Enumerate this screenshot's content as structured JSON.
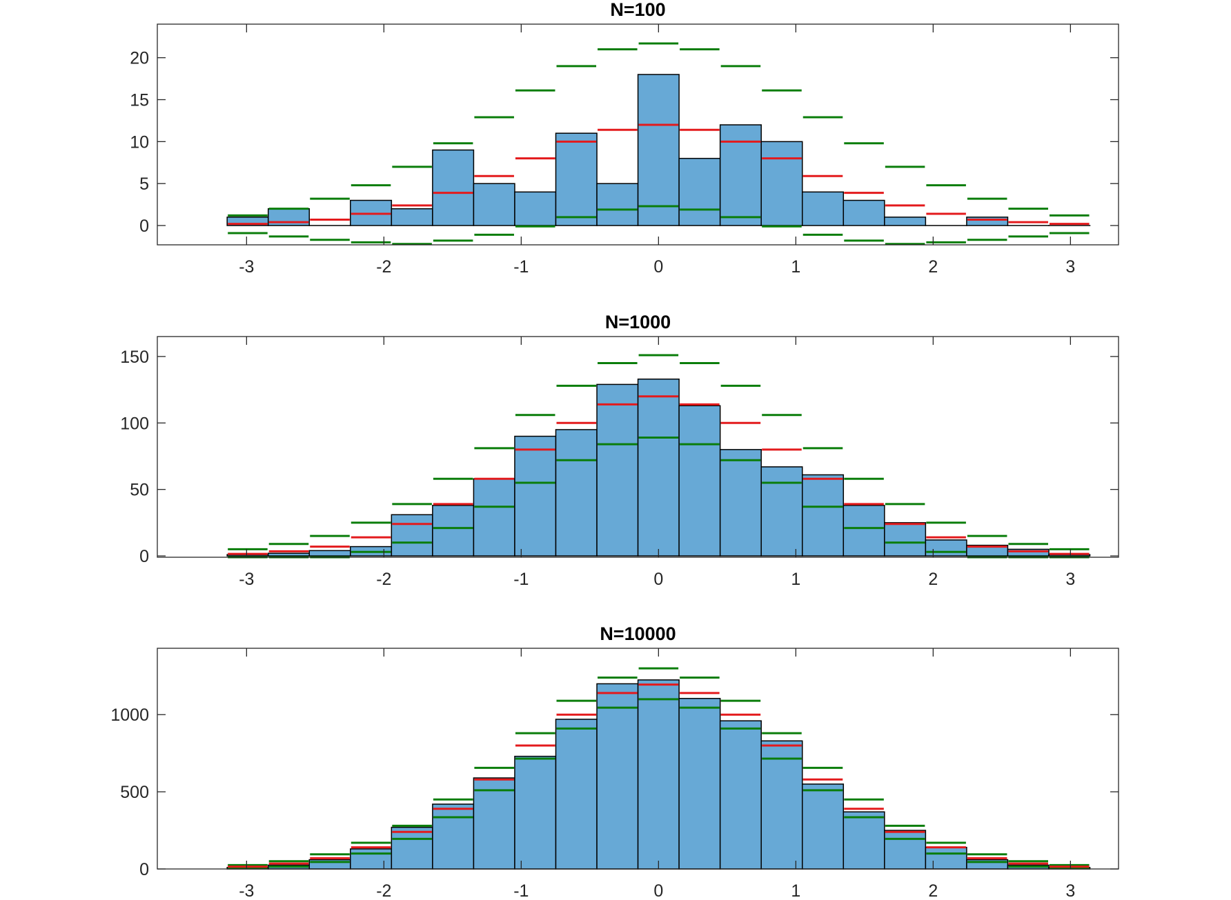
{
  "colors": {
    "bar": "#67a9d6",
    "expected": "#e31a1c",
    "bounds": "#0a7d0a"
  },
  "chart_data": [
    {
      "type": "bar",
      "title": "N=100",
      "ylim": [
        -2.3,
        24
      ],
      "yticks": [
        0,
        5,
        10,
        15,
        20
      ],
      "xlim": [
        -3.65,
        3.35
      ],
      "xticks": [
        -3,
        -2,
        -1,
        0,
        1,
        2,
        3
      ],
      "bin_edges": [
        -3.1416,
        -2.8424,
        -2.5432,
        -2.244,
        -1.9448,
        -1.6456,
        -1.3464,
        -1.0472,
        -0.748,
        -0.4488,
        -0.1496,
        0.1496,
        0.4488,
        0.748,
        1.0472,
        1.3464,
        1.6456,
        1.9448,
        2.244,
        2.5432,
        2.8424,
        3.1416
      ],
      "series": [
        {
          "name": "",
          "type": "bar",
          "values": [
            1,
            2,
            0,
            3,
            2,
            9,
            5,
            4,
            11,
            5,
            18,
            8,
            12,
            10,
            4,
            3,
            1,
            0,
            1,
            0,
            0
          ]
        },
        {
          "name": "",
          "type": "expected",
          "values": [
            0.2,
            0.4,
            0.7,
            1.4,
            2.4,
            3.9,
            5.9,
            8.0,
            10.0,
            11.4,
            12.0,
            11.4,
            10.0,
            8.0,
            5.9,
            3.9,
            2.4,
            1.4,
            0.7,
            0.4,
            0.2
          ]
        },
        {
          "name": "",
          "type": "upper",
          "values": [
            1.2,
            2.0,
            3.2,
            4.8,
            7.0,
            9.8,
            12.9,
            16.1,
            19.0,
            21.0,
            21.7,
            21.0,
            19.0,
            16.1,
            12.9,
            9.8,
            7.0,
            4.8,
            3.2,
            2.0,
            1.2
          ]
        },
        {
          "name": "",
          "type": "lower",
          "values": [
            -0.9,
            -1.3,
            -1.7,
            -2.0,
            -2.2,
            -1.8,
            -1.1,
            -0.1,
            1.0,
            1.9,
            2.3,
            1.9,
            1.0,
            -0.1,
            -1.1,
            -1.8,
            -2.2,
            -2.0,
            -1.7,
            -1.3,
            -0.9
          ]
        }
      ]
    },
    {
      "type": "bar",
      "title": "N=1000",
      "ylim": [
        -1,
        165
      ],
      "yticks": [
        0,
        50,
        100,
        150
      ],
      "xlim": [
        -3.65,
        3.35
      ],
      "xticks": [
        -3,
        -2,
        -1,
        0,
        1,
        2,
        3
      ],
      "bin_edges": [
        -3.1416,
        -2.8424,
        -2.5432,
        -2.244,
        -1.9448,
        -1.6456,
        -1.3464,
        -1.0472,
        -0.748,
        -0.4488,
        -0.1496,
        0.1496,
        0.4488,
        0.748,
        1.0472,
        1.3464,
        1.6456,
        1.9448,
        2.244,
        2.5432,
        2.8424,
        3.1416
      ],
      "series": [
        {
          "name": "",
          "type": "bar",
          "values": [
            1,
            2,
            4,
            7,
            31,
            38,
            58,
            90,
            95,
            129,
            133,
            113,
            80,
            67,
            61,
            38,
            25,
            12,
            8,
            5,
            1
          ]
        },
        {
          "name": "",
          "type": "expected",
          "values": [
            1.5,
            3.5,
            7,
            14,
            24,
            39,
            58,
            80,
            100,
            114,
            120,
            114,
            100,
            80,
            58,
            39,
            24,
            14,
            7,
            3.5,
            1.5
          ]
        },
        {
          "name": "",
          "type": "upper",
          "values": [
            5,
            9,
            15,
            25,
            39,
            58,
            81,
            106,
            128,
            145,
            151,
            145,
            128,
            106,
            81,
            58,
            39,
            25,
            15,
            9,
            5
          ]
        },
        {
          "name": "",
          "type": "lower",
          "values": [
            -2,
            -1,
            -1,
            3,
            10,
            21,
            37,
            55,
            72,
            84,
            89,
            84,
            72,
            55,
            37,
            21,
            10,
            3,
            -1,
            -1,
            -2
          ]
        }
      ]
    },
    {
      "type": "bar",
      "title": "N=10000",
      "ylim": [
        0,
        1430
      ],
      "yticks": [
        0,
        500,
        1000
      ],
      "xlim": [
        -3.65,
        3.35
      ],
      "xticks": [
        -3,
        -2,
        -1,
        0,
        1,
        2,
        3
      ],
      "bin_edges": [
        -3.1416,
        -2.8424,
        -2.5432,
        -2.244,
        -1.9448,
        -1.6456,
        -1.3464,
        -1.0472,
        -0.748,
        -0.4488,
        -0.1496,
        0.1496,
        0.4488,
        0.748,
        1.0472,
        1.3464,
        1.6456,
        1.9448,
        2.244,
        2.5432,
        2.8424,
        3.1416
      ],
      "series": [
        {
          "name": "",
          "type": "bar",
          "values": [
            10,
            25,
            60,
            130,
            270,
            420,
            590,
            730,
            970,
            1200,
            1225,
            1105,
            960,
            830,
            550,
            370,
            250,
            140,
            60,
            25,
            10
          ]
        },
        {
          "name": "",
          "type": "expected",
          "values": [
            15,
            35,
            70,
            140,
            240,
            390,
            580,
            800,
            1000,
            1140,
            1195,
            1140,
            1000,
            800,
            580,
            390,
            240,
            140,
            70,
            35,
            15
          ]
        },
        {
          "name": "",
          "type": "upper",
          "values": [
            25,
            50,
            95,
            170,
            280,
            450,
            655,
            880,
            1090,
            1240,
            1300,
            1240,
            1090,
            880,
            655,
            450,
            280,
            170,
            95,
            50,
            25
          ]
        },
        {
          "name": "",
          "type": "lower",
          "values": [
            5,
            15,
            45,
            100,
            195,
            335,
            510,
            715,
            910,
            1045,
            1100,
            1045,
            910,
            715,
            510,
            335,
            195,
            100,
            45,
            15,
            5
          ]
        }
      ]
    }
  ]
}
